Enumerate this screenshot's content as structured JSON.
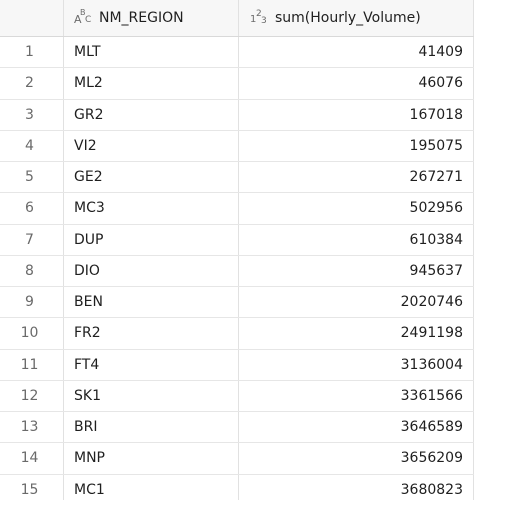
{
  "columns": {
    "col1": {
      "type_icon": "string-type-icon",
      "label": "NM_REGION"
    },
    "col2": {
      "type_icon": "numeric-type-icon",
      "label": "sum(Hourly_Volume)"
    }
  },
  "rows": [
    {
      "n": "1",
      "region": "MLT",
      "volume": "41409"
    },
    {
      "n": "2",
      "region": "ML2",
      "volume": "46076"
    },
    {
      "n": "3",
      "region": "GR2",
      "volume": "167018"
    },
    {
      "n": "4",
      "region": "VI2",
      "volume": "195075"
    },
    {
      "n": "5",
      "region": "GE2",
      "volume": "267271"
    },
    {
      "n": "6",
      "region": "MC3",
      "volume": "502956"
    },
    {
      "n": "7",
      "region": "DUP",
      "volume": "610384"
    },
    {
      "n": "8",
      "region": "DIO",
      "volume": "945637"
    },
    {
      "n": "9",
      "region": "BEN",
      "volume": "2020746"
    },
    {
      "n": "10",
      "region": "FR2",
      "volume": "2491198"
    },
    {
      "n": "11",
      "region": "FT4",
      "volume": "3136004"
    },
    {
      "n": "12",
      "region": "SK1",
      "volume": "3361566"
    },
    {
      "n": "13",
      "region": "BRI",
      "volume": "3646589"
    },
    {
      "n": "14",
      "region": "MNP",
      "volume": "3656209"
    },
    {
      "n": "15",
      "region": "MC1",
      "volume": "3680823"
    }
  ]
}
